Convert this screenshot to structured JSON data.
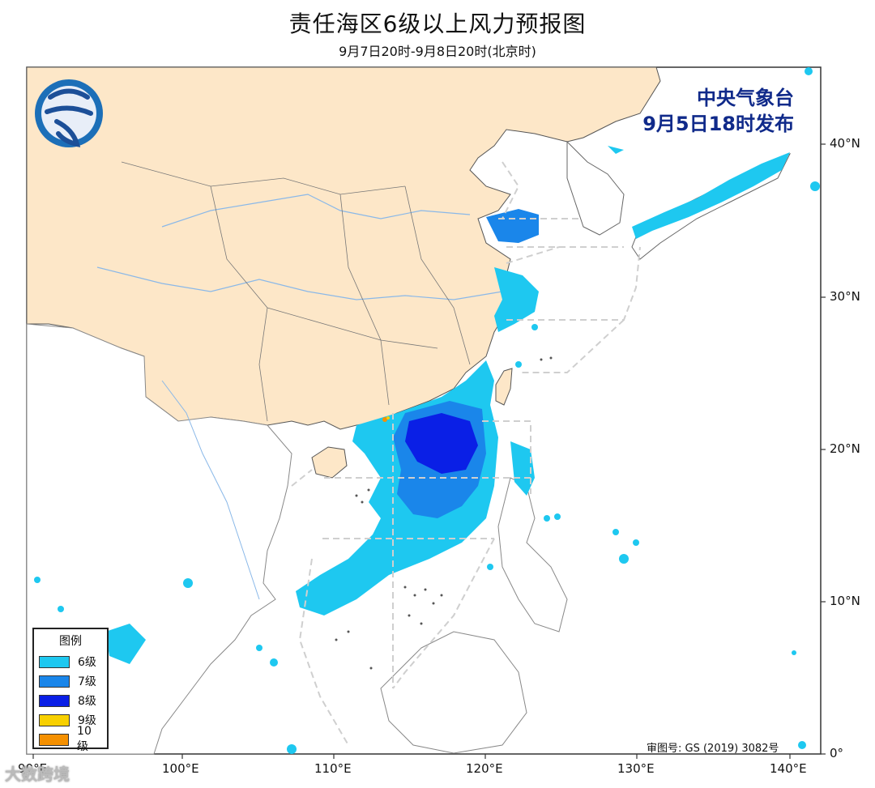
{
  "title": "责任海区6级以上风力预报图",
  "subtitle": "9月7日20时-9月8日20时(北京时)",
  "issuer": {
    "org": "中央气象台",
    "time": "9月5日18时发布"
  },
  "legend": {
    "title": "图例",
    "items": [
      {
        "label": "6级",
        "color": "#1ec8f0"
      },
      {
        "label": "7级",
        "color": "#1a86ea"
      },
      {
        "label": "8级",
        "color": "#0a1fe6"
      },
      {
        "label": "9级",
        "color": "#f8d000"
      },
      {
        "label": "10级",
        "color": "#f59000"
      }
    ]
  },
  "axes": {
    "lon_labels": [
      "90°E",
      "100°E",
      "110°E",
      "120°E",
      "130°E",
      "140°E"
    ],
    "lat_labels": [
      "0°",
      "10°N",
      "20°N",
      "30°N",
      "40°N"
    ]
  },
  "approval_no": "审图号: GS (2019) 3082号",
  "watermark": "大数跨境",
  "colors": {
    "land_china": "#fde7c8",
    "sea": "#ffffff",
    "boundary": "#555555",
    "dashed": "#cfcfcf",
    "river": "#8ab8e8"
  }
}
